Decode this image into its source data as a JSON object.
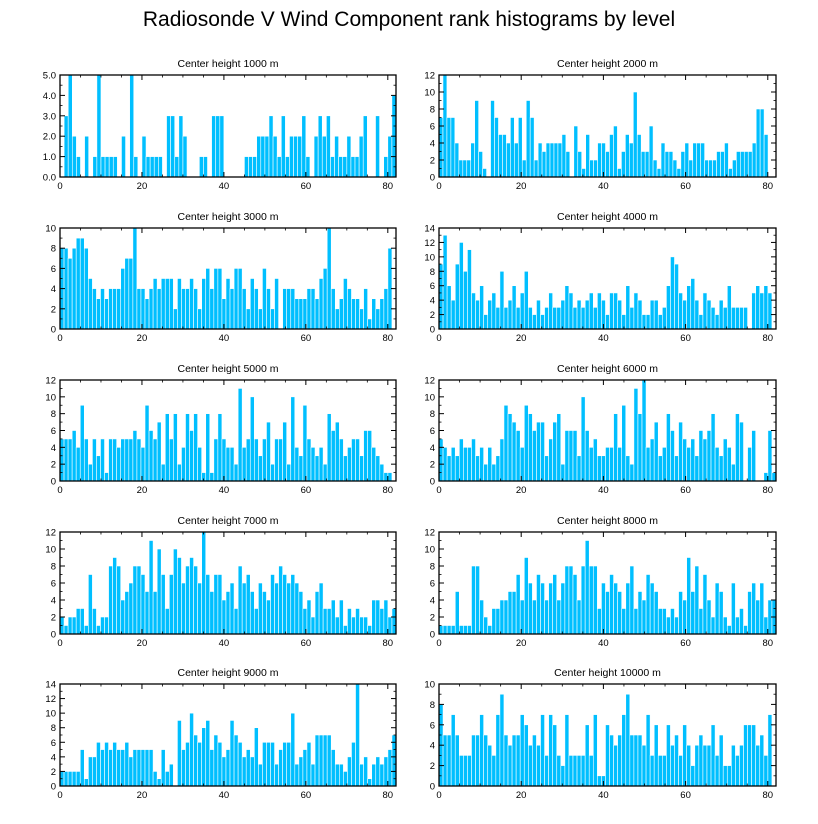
{
  "title": "Radiosonde V Wind Component rank histograms by level",
  "colors": {
    "bar_fill": "#00BFFF",
    "bar_stroke": "#ffffff",
    "axis": "#000000"
  },
  "chart_data": [
    {
      "type": "bar",
      "title": "Center height 1000 m",
      "xlim": [
        0,
        82
      ],
      "xticks": [
        0,
        20,
        40,
        60,
        80
      ],
      "ylim": [
        0,
        5
      ],
      "yticks": [
        0.0,
        1.0,
        2.0,
        3.0,
        4.0,
        5.0
      ],
      "ytick_labels": [
        "0.0",
        "1.0",
        "2.0",
        "3.0",
        "4.0",
        "5.0"
      ],
      "values": [
        0,
        3,
        5,
        2,
        1,
        0,
        2,
        0,
        1,
        5,
        1,
        1,
        1,
        1,
        0,
        2,
        0,
        5,
        1,
        0,
        2,
        1,
        1,
        1,
        1,
        0,
        3,
        3,
        1,
        3,
        2,
        0,
        0,
        0,
        1,
        1,
        0,
        3,
        3,
        3,
        0,
        0,
        0,
        0,
        0,
        1,
        1,
        1,
        2,
        2,
        2,
        3,
        2,
        1,
        3,
        1,
        2,
        2,
        2,
        3,
        1,
        0,
        2,
        3,
        2,
        3,
        1,
        2,
        1,
        1,
        2,
        1,
        1,
        2,
        3,
        0,
        0,
        3,
        0,
        1,
        2,
        4
      ]
    },
    {
      "type": "bar",
      "title": "Center height 2000 m",
      "xlim": [
        0,
        82
      ],
      "xticks": [
        0,
        20,
        40,
        60,
        80
      ],
      "ylim": [
        0,
        12
      ],
      "yticks": [
        0,
        2,
        4,
        6,
        8,
        10,
        12
      ],
      "ytick_labels": [
        "0",
        "2",
        "4",
        "6",
        "8",
        "10",
        "12"
      ],
      "values": [
        7,
        12,
        7,
        7,
        4,
        2,
        2,
        2,
        4,
        9,
        3,
        1,
        0,
        9,
        7,
        5,
        5,
        4,
        7,
        4,
        7,
        2,
        9,
        7,
        2,
        4,
        3,
        4,
        4,
        4,
        4,
        5,
        3,
        0,
        6,
        3,
        1,
        5,
        2,
        2,
        4,
        4,
        3,
        5,
        6,
        1,
        3,
        5,
        4,
        10,
        5,
        3,
        3,
        6,
        2,
        1,
        4,
        3,
        3,
        2,
        1,
        3,
        4,
        2,
        4,
        4,
        4,
        2,
        2,
        2,
        3,
        3,
        4,
        1,
        2,
        3,
        3,
        3,
        3,
        4,
        8,
        8,
        5,
        0,
        0
      ]
    },
    {
      "type": "bar",
      "title": "Center height 3000 m",
      "xlim": [
        0,
        82
      ],
      "xticks": [
        0,
        20,
        40,
        60,
        80
      ],
      "ylim": [
        0,
        10
      ],
      "yticks": [
        0,
        2,
        4,
        6,
        8,
        10
      ],
      "ytick_labels": [
        "0",
        "2",
        "4",
        "6",
        "8",
        "10"
      ],
      "values": [
        8,
        8,
        7,
        8,
        9,
        9,
        8,
        5,
        4,
        3,
        4,
        3,
        4,
        4,
        4,
        6,
        7,
        7,
        10,
        4,
        4,
        3,
        4,
        5,
        4,
        5,
        5,
        5,
        2,
        5,
        4,
        4,
        5,
        4,
        2,
        5,
        6,
        4,
        6,
        6,
        3,
        5,
        4,
        6,
        6,
        4,
        2,
        5,
        4,
        2,
        6,
        4,
        2,
        5,
        0,
        4,
        4,
        4,
        3,
        3,
        3,
        4,
        4,
        3,
        5,
        6,
        10,
        4,
        2,
        3,
        5,
        4,
        3,
        3,
        2,
        4,
        1,
        3,
        2,
        3,
        4,
        8,
        0
      ]
    },
    {
      "type": "bar",
      "title": "Center height 4000 m",
      "xlim": [
        0,
        82
      ],
      "xticks": [
        0,
        20,
        40,
        60,
        80
      ],
      "ylim": [
        0,
        14
      ],
      "yticks": [
        0,
        2,
        4,
        6,
        8,
        10,
        12,
        14
      ],
      "ytick_labels": [
        "0",
        "2",
        "4",
        "6",
        "8",
        "10",
        "12",
        "14"
      ],
      "values": [
        9,
        13,
        6,
        4,
        9,
        12,
        8,
        11,
        5,
        4,
        6,
        2,
        4,
        5,
        3,
        8,
        3,
        4,
        6,
        3,
        5,
        8,
        3,
        2,
        4,
        2,
        3,
        5,
        3,
        3,
        4,
        6,
        5,
        3,
        4,
        3,
        4,
        5,
        3,
        5,
        4,
        2,
        5,
        5,
        4,
        2,
        6,
        3,
        5,
        4,
        2,
        2,
        4,
        4,
        2,
        3,
        6,
        10,
        9,
        5,
        4,
        6,
        7,
        4,
        2,
        5,
        4,
        3,
        2,
        4,
        3,
        6,
        3,
        3,
        3,
        3,
        0,
        5,
        6,
        5,
        6,
        5,
        0
      ]
    },
    {
      "type": "bar",
      "title": "Center height 5000 m",
      "xlim": [
        0,
        82
      ],
      "xticks": [
        0,
        20,
        40,
        60,
        80
      ],
      "ylim": [
        0,
        12
      ],
      "yticks": [
        0,
        2,
        4,
        6,
        8,
        10,
        12
      ],
      "ytick_labels": [
        "0",
        "2",
        "4",
        "6",
        "8",
        "10",
        "12"
      ],
      "values": [
        5,
        5,
        5,
        6,
        4,
        9,
        5,
        2,
        5,
        3,
        5,
        1,
        5,
        5,
        4,
        5,
        5,
        5,
        6,
        5,
        4,
        9,
        6,
        5,
        7,
        2,
        8,
        5,
        8,
        2,
        4,
        8,
        6,
        8,
        4,
        1,
        8,
        1,
        5,
        8,
        5,
        4,
        4,
        2,
        11,
        4,
        5,
        10,
        5,
        3,
        5,
        7,
        2,
        5,
        5,
        7,
        2,
        10,
        4,
        3,
        9,
        5,
        4,
        3,
        4,
        2,
        8,
        6,
        7,
        5,
        3,
        4,
        5,
        5,
        3,
        6,
        6,
        4,
        3,
        2,
        1,
        1,
        0
      ]
    },
    {
      "type": "bar",
      "title": "Center height 6000 m",
      "xlim": [
        0,
        82
      ],
      "xticks": [
        0,
        20,
        40,
        60,
        80
      ],
      "ylim": [
        0,
        12
      ],
      "yticks": [
        0,
        2,
        4,
        6,
        8,
        10,
        12
      ],
      "ytick_labels": [
        "0",
        "2",
        "4",
        "6",
        "8",
        "10",
        "12"
      ],
      "values": [
        5,
        4,
        3,
        4,
        3,
        5,
        4,
        4,
        5,
        3,
        4,
        2,
        4,
        2,
        3,
        5,
        9,
        8,
        7,
        6,
        4,
        9,
        8,
        6,
        7,
        7,
        3,
        5,
        7,
        8,
        2,
        6,
        6,
        6,
        3,
        10,
        6,
        4,
        5,
        3,
        3,
        4,
        4,
        8,
        4,
        9,
        3,
        2,
        11,
        8,
        12,
        4,
        5,
        7,
        3,
        4,
        8,
        6,
        3,
        7,
        5,
        4,
        5,
        3,
        6,
        5,
        6,
        8,
        4,
        3,
        5,
        4,
        2,
        8,
        7,
        0,
        4,
        6,
        0,
        0,
        1,
        6,
        1
      ]
    },
    {
      "type": "bar",
      "title": "Center height 7000 m",
      "xlim": [
        0,
        82
      ],
      "xticks": [
        0,
        20,
        40,
        60,
        80
      ],
      "ylim": [
        0,
        12
      ],
      "yticks": [
        0,
        2,
        4,
        6,
        8,
        10,
        12
      ],
      "ytick_labels": [
        "0",
        "2",
        "4",
        "6",
        "8",
        "10",
        "12"
      ],
      "values": [
        2,
        1,
        2,
        2,
        3,
        3,
        1,
        7,
        3,
        1,
        2,
        2,
        8,
        9,
        8,
        4,
        5,
        6,
        8,
        8,
        7,
        5,
        11,
        5,
        10,
        7,
        3,
        7,
        10,
        9,
        6,
        8,
        9,
        8,
        6,
        12,
        7,
        5,
        7,
        7,
        4,
        5,
        6,
        3,
        8,
        6,
        7,
        5,
        3,
        6,
        5,
        4,
        7,
        6,
        8,
        7,
        6,
        7,
        6,
        5,
        3,
        4,
        2,
        5,
        6,
        3,
        3,
        4,
        2,
        4,
        1,
        3,
        2,
        3,
        2,
        2,
        1,
        4,
        4,
        3,
        4,
        2,
        3
      ]
    },
    {
      "type": "bar",
      "title": "Center height 8000 m",
      "xlim": [
        0,
        82
      ],
      "xticks": [
        0,
        20,
        40,
        60,
        80
      ],
      "ylim": [
        0,
        12
      ],
      "yticks": [
        0,
        2,
        4,
        6,
        8,
        10,
        12
      ],
      "ytick_labels": [
        "0",
        "2",
        "4",
        "6",
        "8",
        "10",
        "12"
      ],
      "values": [
        1,
        1,
        1,
        1,
        5,
        1,
        1,
        1,
        8,
        8,
        4,
        2,
        1,
        3,
        3,
        4,
        4,
        5,
        5,
        7,
        4,
        9,
        6,
        4,
        7,
        6,
        4,
        6,
        7,
        4,
        6,
        8,
        8,
        7,
        4,
        8,
        11,
        8,
        8,
        3,
        6,
        5,
        7,
        6,
        5,
        3,
        6,
        8,
        3,
        5,
        4,
        7,
        6,
        5,
        3,
        3,
        2,
        3,
        2,
        5,
        4,
        9,
        5,
        8,
        3,
        7,
        4,
        2,
        6,
        5,
        2,
        1,
        6,
        2,
        3,
        1,
        5,
        6,
        4,
        6,
        2,
        4,
        4
      ]
    },
    {
      "type": "bar",
      "title": "Center height 9000 m",
      "xlim": [
        0,
        82
      ],
      "xticks": [
        0,
        20,
        40,
        60,
        80
      ],
      "ylim": [
        0,
        14
      ],
      "yticks": [
        0,
        2,
        4,
        6,
        8,
        10,
        12,
        14
      ],
      "ytick_labels": [
        "0",
        "2",
        "4",
        "6",
        "8",
        "10",
        "12",
        "14"
      ],
      "values": [
        2,
        2,
        2,
        2,
        2,
        5,
        1,
        4,
        4,
        6,
        5,
        6,
        5,
        6,
        5,
        5,
        6,
        4,
        5,
        5,
        5,
        5,
        5,
        2,
        1,
        5,
        2,
        3,
        0,
        9,
        5,
        6,
        10,
        7,
        6,
        8,
        9,
        5,
        7,
        6,
        4,
        5,
        9,
        7,
        6,
        4,
        5,
        4,
        8,
        3,
        6,
        6,
        6,
        3,
        5,
        6,
        6,
        10,
        3,
        4,
        5,
        6,
        3,
        7,
        7,
        7,
        7,
        5,
        3,
        3,
        2,
        4,
        6,
        14,
        3,
        4,
        1,
        3,
        4,
        3,
        4,
        5,
        7
      ]
    },
    {
      "type": "bar",
      "title": "Center height 10000 m",
      "xlim": [
        0,
        82
      ],
      "xticks": [
        0,
        20,
        40,
        60,
        80
      ],
      "ylim": [
        0,
        10
      ],
      "yticks": [
        0,
        2,
        4,
        6,
        8,
        10
      ],
      "ytick_labels": [
        "0",
        "2",
        "4",
        "6",
        "8",
        "10"
      ],
      "values": [
        8,
        5,
        5,
        7,
        5,
        3,
        3,
        3,
        5,
        5,
        7,
        5,
        4,
        3,
        7,
        9,
        5,
        4,
        5,
        5,
        7,
        6,
        4,
        5,
        4,
        7,
        3,
        7,
        6,
        3,
        2,
        7,
        3,
        3,
        3,
        3,
        6,
        3,
        7,
        1,
        1,
        6,
        5,
        4,
        5,
        7,
        9,
        5,
        5,
        5,
        4,
        7,
        3,
        6,
        3,
        3,
        6,
        4,
        5,
        3,
        6,
        4,
        2,
        4,
        5,
        4,
        4,
        6,
        3,
        5,
        2,
        2,
        4,
        3,
        4,
        6,
        6,
        6,
        4,
        5,
        3,
        7,
        0
      ]
    }
  ]
}
